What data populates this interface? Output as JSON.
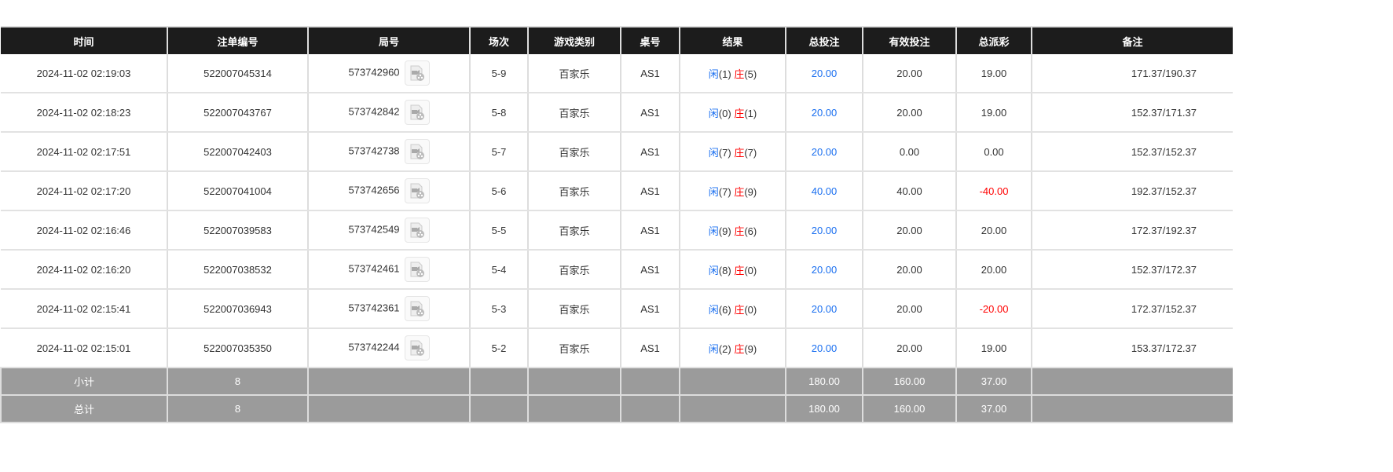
{
  "headers": [
    "时间",
    "注单编号",
    "局号",
    "场次",
    "游戏类别",
    "桌号",
    "结果",
    "总投注",
    "有效投注",
    "总派彩",
    "备注"
  ],
  "result_labels": {
    "player": "闲",
    "banker": "庄"
  },
  "colors": {
    "header_bg": "#1c1c1c",
    "summary_bg": "#9b9b9b",
    "blue": "#1a6ff0",
    "red": "#ff0000"
  },
  "rows": [
    {
      "time": "2024-11-02 02:19:03",
      "bet_id": "522007045314",
      "round": "573742960",
      "shoe": "5-9",
      "game": "百家乐",
      "table": "AS1",
      "player": "(1)",
      "banker": "(5)",
      "total": "20.00",
      "valid": "20.00",
      "payout": "19.00",
      "payout_negative": false,
      "note": "171.37/190.37"
    },
    {
      "time": "2024-11-02 02:18:23",
      "bet_id": "522007043767",
      "round": "573742842",
      "shoe": "5-8",
      "game": "百家乐",
      "table": "AS1",
      "player": "(0)",
      "banker": "(1)",
      "total": "20.00",
      "valid": "20.00",
      "payout": "19.00",
      "payout_negative": false,
      "note": "152.37/171.37"
    },
    {
      "time": "2024-11-02 02:17:51",
      "bet_id": "522007042403",
      "round": "573742738",
      "shoe": "5-7",
      "game": "百家乐",
      "table": "AS1",
      "player": "(7)",
      "banker": "(7)",
      "total": "20.00",
      "valid": "0.00",
      "payout": "0.00",
      "payout_negative": false,
      "note": "152.37/152.37"
    },
    {
      "time": "2024-11-02 02:17:20",
      "bet_id": "522007041004",
      "round": "573742656",
      "shoe": "5-6",
      "game": "百家乐",
      "table": "AS1",
      "player": "(7)",
      "banker": "(9)",
      "total": "40.00",
      "valid": "40.00",
      "payout": "-40.00",
      "payout_negative": true,
      "note": "192.37/152.37"
    },
    {
      "time": "2024-11-02 02:16:46",
      "bet_id": "522007039583",
      "round": "573742549",
      "shoe": "5-5",
      "game": "百家乐",
      "table": "AS1",
      "player": "(9)",
      "banker": "(6)",
      "total": "20.00",
      "valid": "20.00",
      "payout": "20.00",
      "payout_negative": false,
      "note": "172.37/192.37"
    },
    {
      "time": "2024-11-02 02:16:20",
      "bet_id": "522007038532",
      "round": "573742461",
      "shoe": "5-4",
      "game": "百家乐",
      "table": "AS1",
      "player": "(8)",
      "banker": "(0)",
      "total": "20.00",
      "valid": "20.00",
      "payout": "20.00",
      "payout_negative": false,
      "note": "152.37/172.37"
    },
    {
      "time": "2024-11-02 02:15:41",
      "bet_id": "522007036943",
      "round": "573742361",
      "shoe": "5-3",
      "game": "百家乐",
      "table": "AS1",
      "player": "(6)",
      "banker": "(0)",
      "total": "20.00",
      "valid": "20.00",
      "payout": "-20.00",
      "payout_negative": true,
      "note": "172.37/152.37"
    },
    {
      "time": "2024-11-02 02:15:01",
      "bet_id": "522007035350",
      "round": "573742244",
      "shoe": "5-2",
      "game": "百家乐",
      "table": "AS1",
      "player": "(2)",
      "banker": "(9)",
      "total": "20.00",
      "valid": "20.00",
      "payout": "19.00",
      "payout_negative": false,
      "note": "153.37/172.37"
    }
  ],
  "summary": [
    {
      "label": "小计",
      "count": "8",
      "total": "180.00",
      "valid": "160.00",
      "payout": "37.00"
    },
    {
      "label": "总计",
      "count": "8",
      "total": "180.00",
      "valid": "160.00",
      "payout": "37.00"
    }
  ]
}
